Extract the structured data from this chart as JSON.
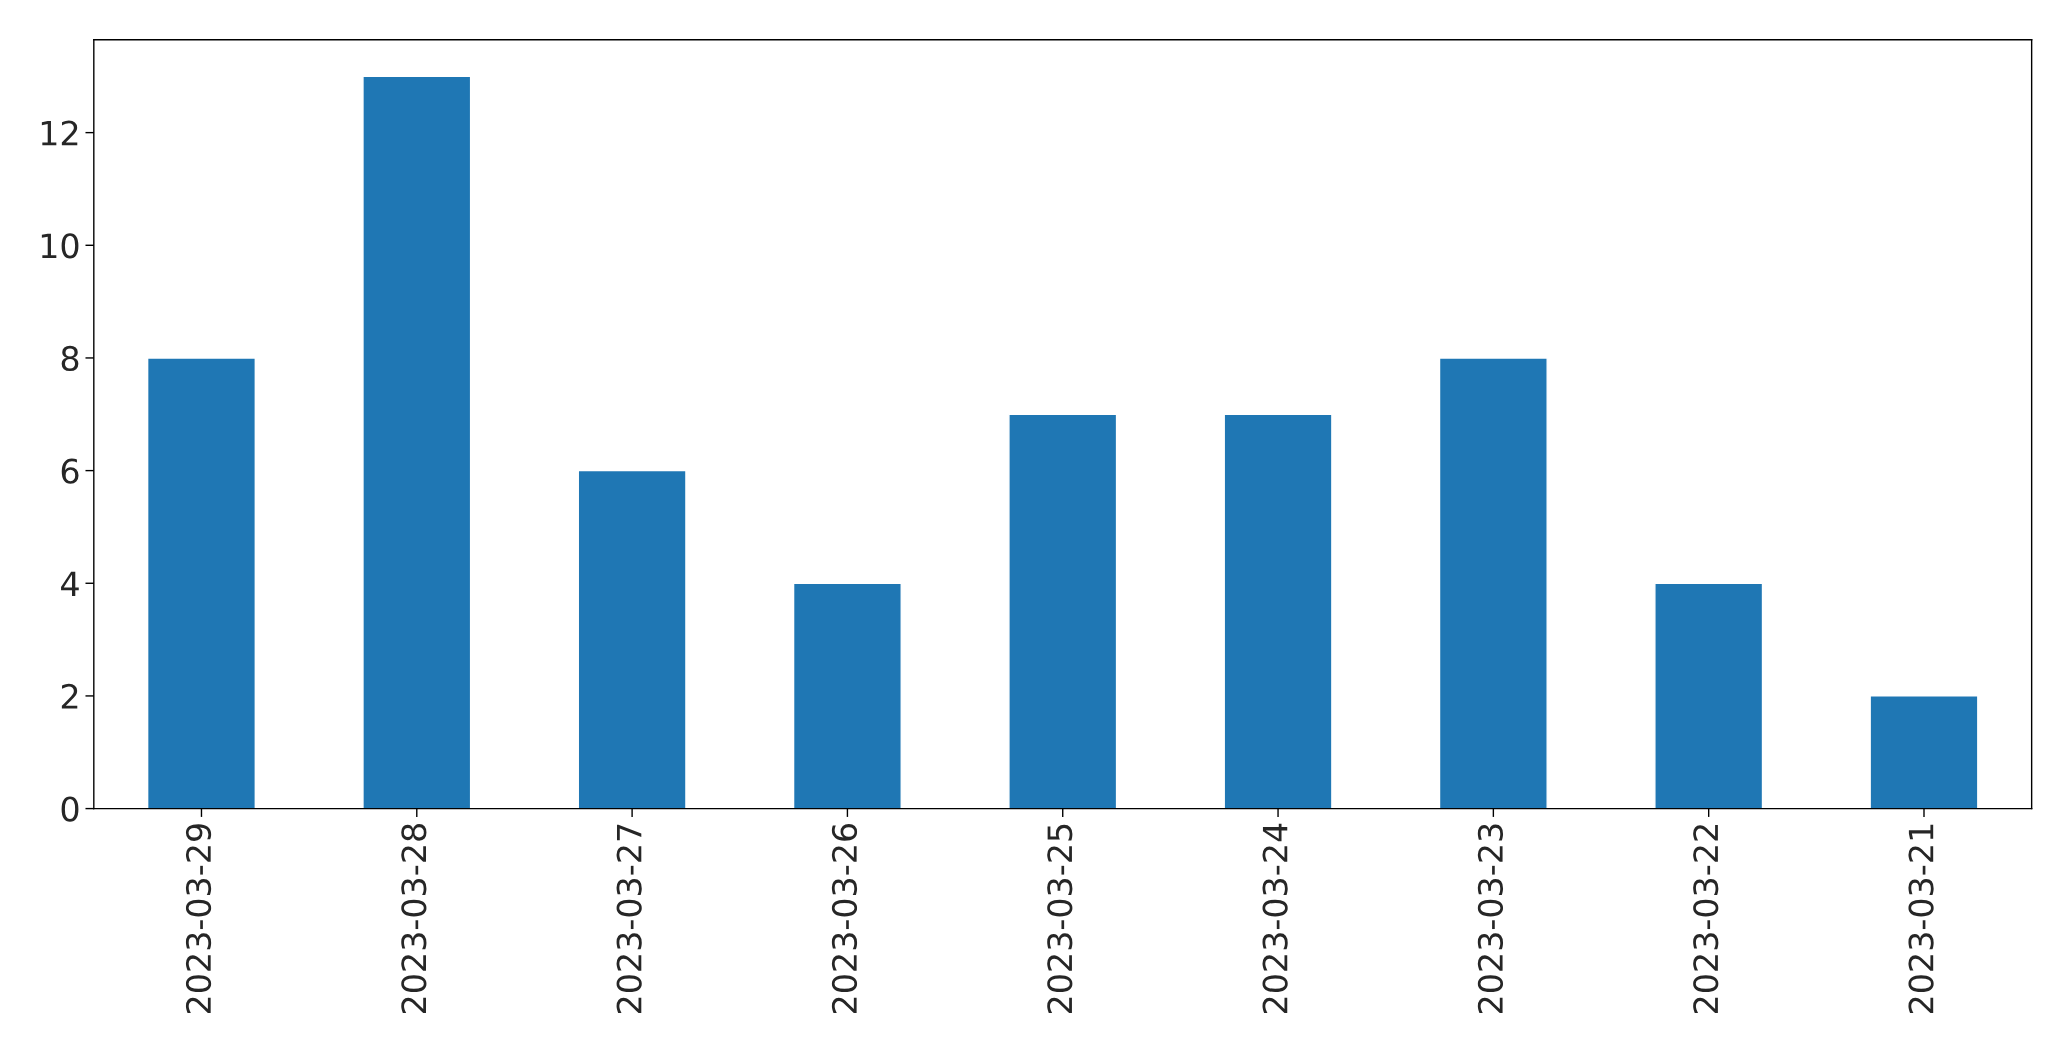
{
  "chart_data": {
    "type": "bar",
    "categories": [
      "2023-03-29",
      "2023-03-28",
      "2023-03-27",
      "2023-03-26",
      "2023-03-25",
      "2023-03-24",
      "2023-03-23",
      "2023-03-22",
      "2023-03-21"
    ],
    "values": [
      8,
      13,
      6,
      4,
      7,
      7,
      8,
      4,
      2
    ],
    "color": "#1f77b4",
    "ylim": [
      0,
      13.65
    ],
    "yticks": [
      0,
      2,
      4,
      6,
      8,
      10,
      12
    ],
    "grid": false,
    "legend": false
  }
}
